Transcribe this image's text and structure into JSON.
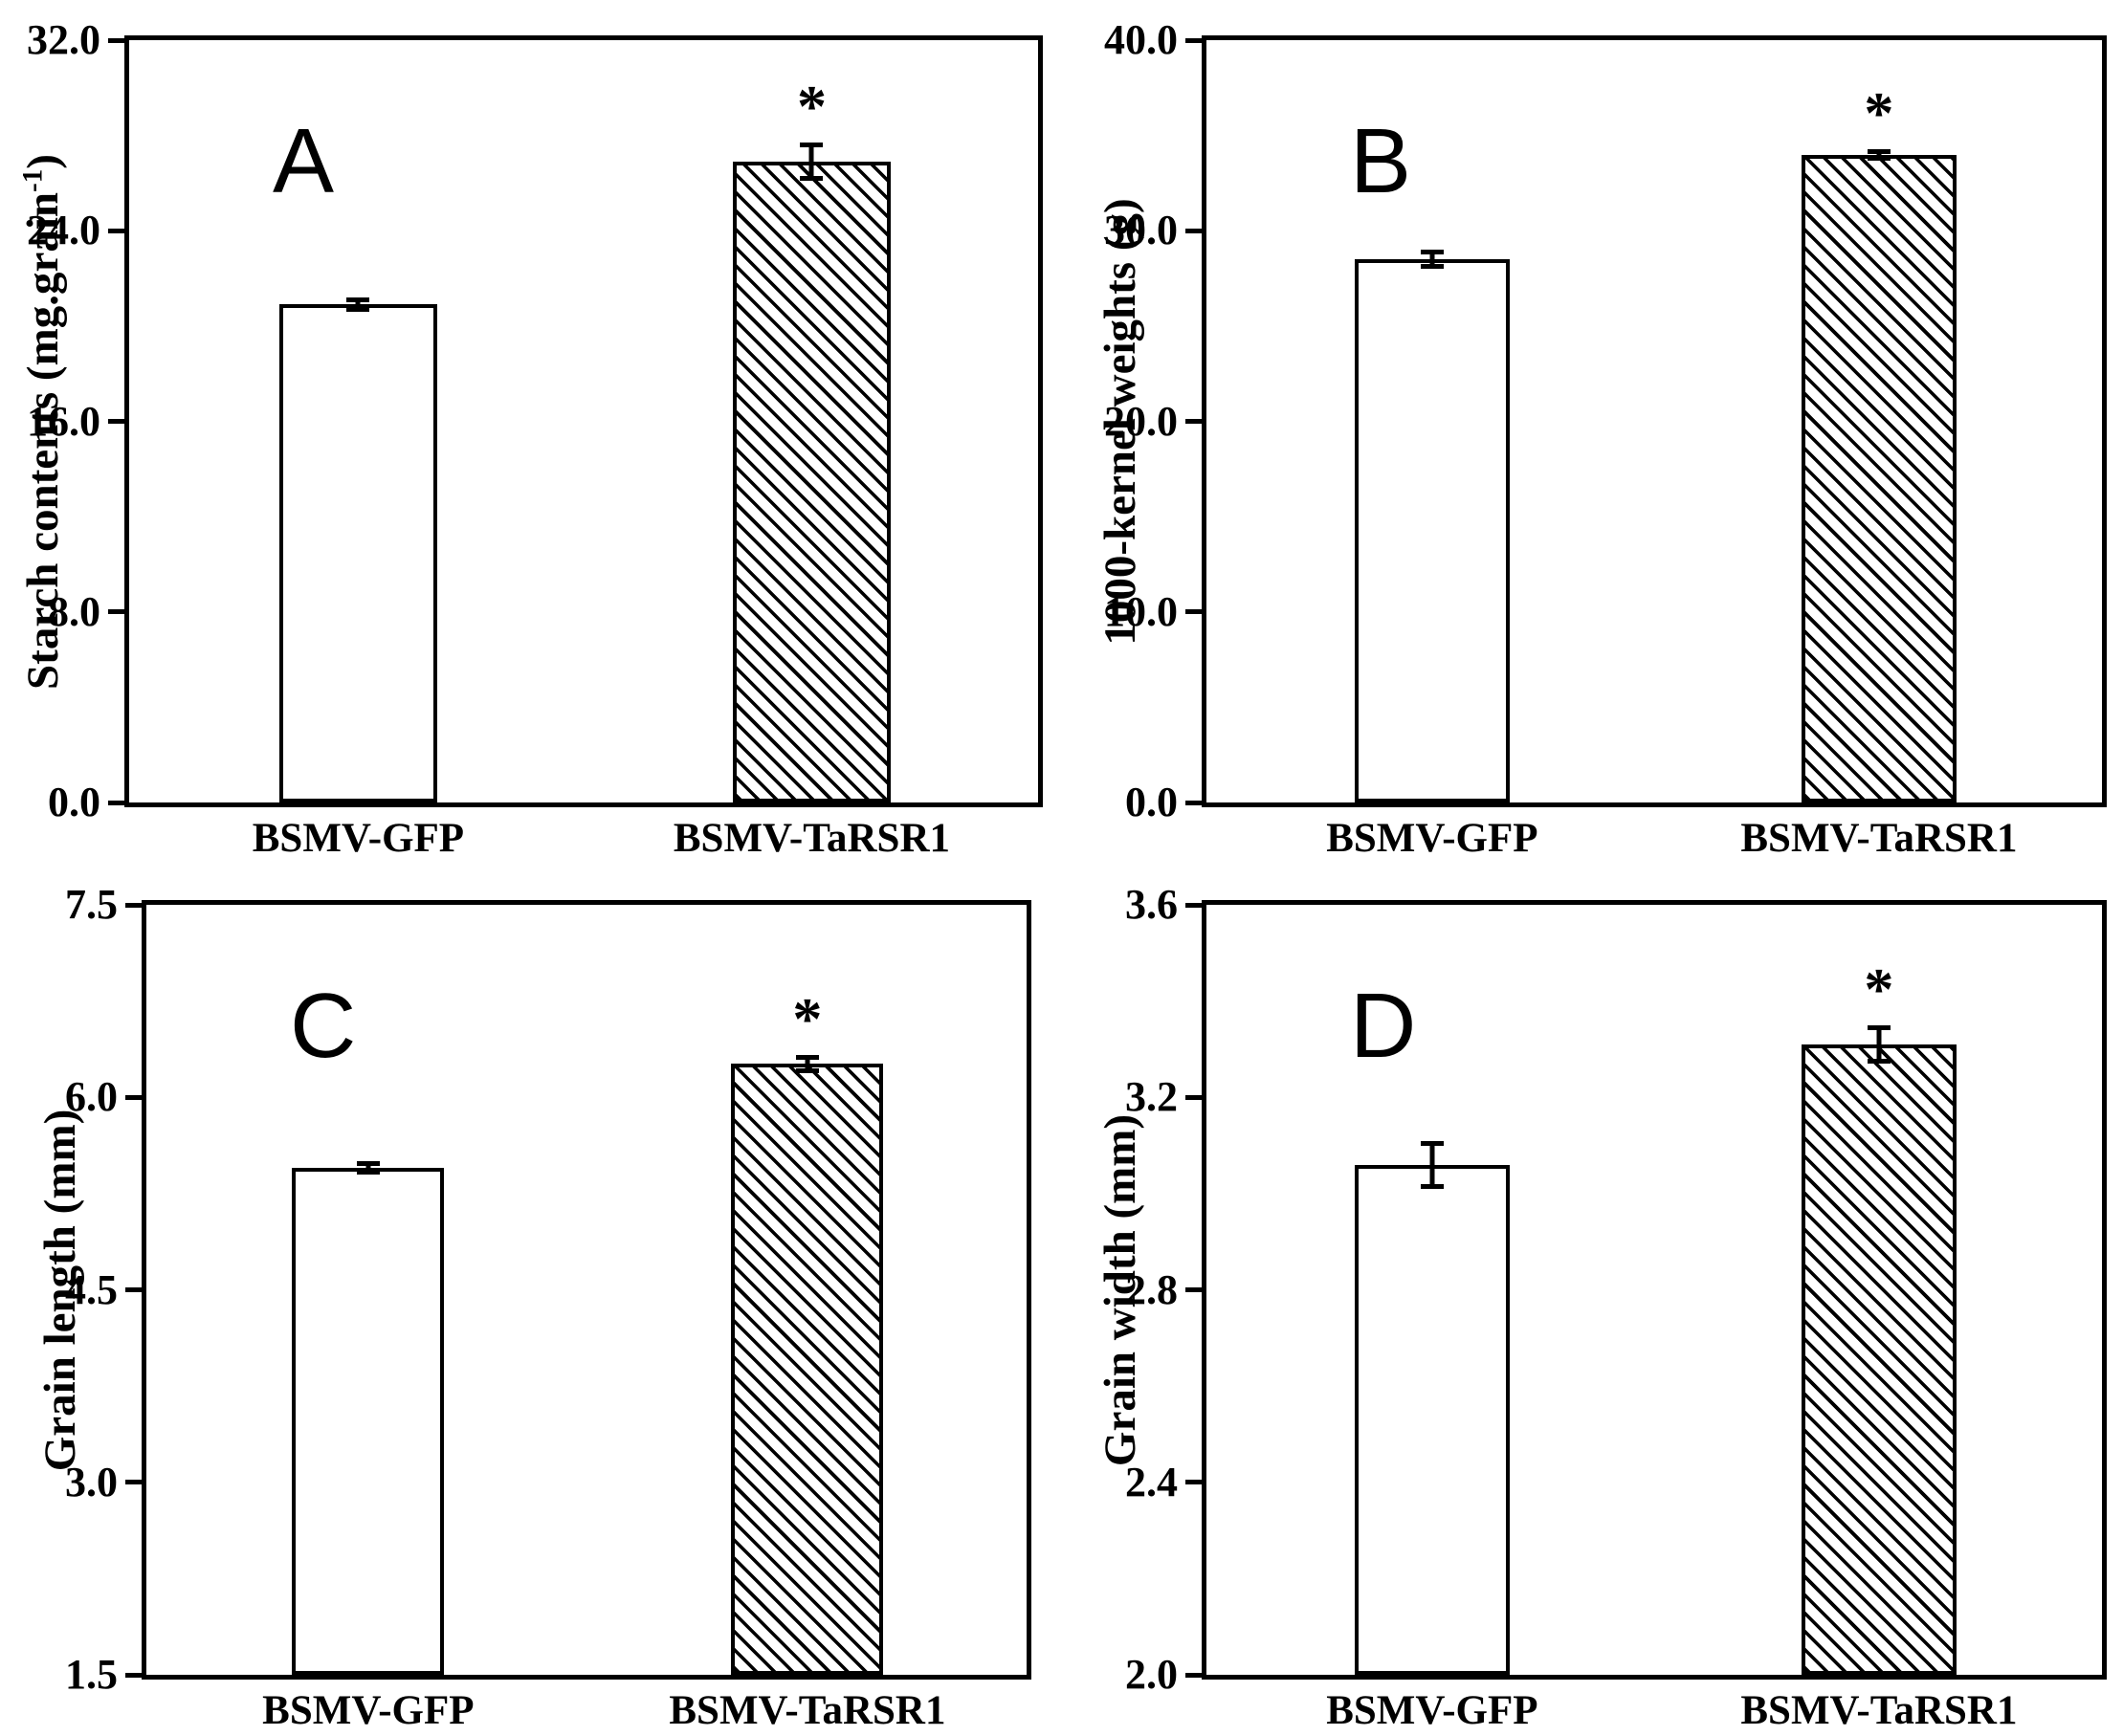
{
  "figure": {
    "background": "#ffffff",
    "ink_color": "#000000",
    "panel_letters": [
      "A",
      "B",
      "C",
      "D"
    ],
    "group_labels": [
      "BSMV-GFP",
      "BSMV-TaRSR1"
    ]
  },
  "chart_data": [
    {
      "panel": "A",
      "type": "bar",
      "title": "",
      "ylabel": "Starch contents (mg.grain-1)",
      "ylabel_parts": {
        "pre": "Starch contents (mg.grain",
        "sup": "-1",
        "post": ")"
      },
      "categories": [
        "BSMV-GFP",
        "BSMV-TaRSR1"
      ],
      "values": [
        20.9,
        26.9
      ],
      "errors": [
        0.3,
        0.8
      ],
      "significance": [
        "",
        "*"
      ],
      "bar_fill": [
        "open",
        "hatched-diagonal"
      ],
      "ylim": [
        0.0,
        32.0
      ],
      "yticks": [
        32.0,
        24.0,
        16.0,
        8.0,
        0.0
      ],
      "ytick_labels": [
        "32.0",
        "24.0",
        "16.0",
        "8.0",
        "0.0"
      ],
      "grid": false,
      "legend": null
    },
    {
      "panel": "B",
      "type": "bar",
      "title": "",
      "ylabel": "1000-kernel weights (g)",
      "ylabel_parts": {
        "pre": "1000-kernel weights (g)",
        "sup": "",
        "post": ""
      },
      "categories": [
        "BSMV-GFP",
        "BSMV-TaRSR1"
      ],
      "values": [
        28.5,
        34.0
      ],
      "errors": [
        0.5,
        0.3
      ],
      "significance": [
        "",
        "*"
      ],
      "bar_fill": [
        "open",
        "hatched-diagonal"
      ],
      "ylim": [
        0.0,
        40.0
      ],
      "yticks": [
        40.0,
        30.0,
        20.0,
        10.0,
        0.0
      ],
      "ytick_labels": [
        "40.0",
        "30.0",
        "20.0",
        "10.0",
        "0.0"
      ],
      "grid": false,
      "legend": null
    },
    {
      "panel": "C",
      "type": "bar",
      "title": "",
      "ylabel": "Grain length (mm)",
      "ylabel_parts": {
        "pre": "Grain length (mm)",
        "sup": "",
        "post": ""
      },
      "categories": [
        "BSMV-GFP",
        "BSMV-TaRSR1"
      ],
      "values": [
        5.45,
        6.26
      ],
      "errors": [
        0.05,
        0.07
      ],
      "significance": [
        "",
        "*"
      ],
      "bar_fill": [
        "open",
        "hatched-diagonal"
      ],
      "ylim": [
        1.5,
        7.5
      ],
      "yticks": [
        7.5,
        6.0,
        4.5,
        3.0,
        1.5
      ],
      "ytick_labels": [
        "7.5",
        "6.0",
        "4.5",
        "3.0",
        "1.5"
      ],
      "grid": false,
      "legend": null
    },
    {
      "panel": "D",
      "type": "bar",
      "title": "",
      "ylabel": "Grain width (mm)",
      "ylabel_parts": {
        "pre": "Grain width (mm)",
        "sup": "",
        "post": ""
      },
      "categories": [
        "BSMV-GFP",
        "BSMV-TaRSR1"
      ],
      "values": [
        3.06,
        3.31
      ],
      "errors": [
        0.05,
        0.04
      ],
      "significance": [
        "",
        "*"
      ],
      "bar_fill": [
        "open",
        "hatched-diagonal"
      ],
      "ylim": [
        2.0,
        3.6
      ],
      "yticks": [
        3.6,
        3.2,
        2.8,
        2.4,
        2.0
      ],
      "ytick_labels": [
        "3.6",
        "3.2",
        "2.8",
        "2.4",
        "2.0"
      ],
      "grid": false,
      "legend": null
    }
  ]
}
